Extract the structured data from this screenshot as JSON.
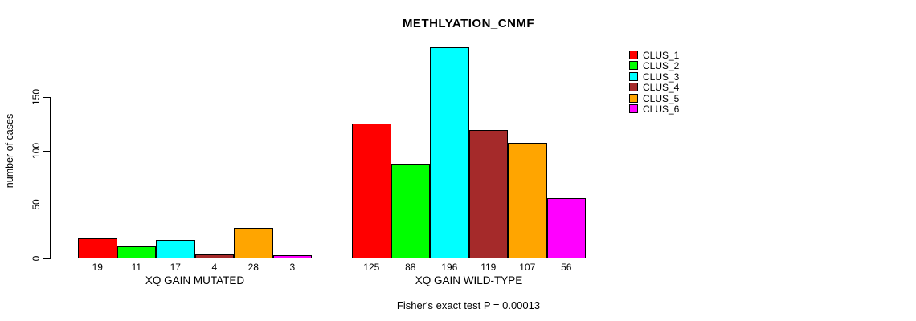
{
  "title": "METHLYATION_CNMF",
  "footer": "Fisher's exact test P = 0.00013",
  "y_axis": {
    "label": "number of cases",
    "ticks": [
      0,
      50,
      100,
      150
    ]
  },
  "legend": {
    "items": [
      {
        "label": "CLUS_1",
        "color": "#FF0000"
      },
      {
        "label": "CLUS_2",
        "color": "#00FF00"
      },
      {
        "label": "CLUS_3",
        "color": "#00FFFF"
      },
      {
        "label": "CLUS_4",
        "color": "#A52A2A"
      },
      {
        "label": "CLUS_5",
        "color": "#FFA500"
      },
      {
        "label": "CLUS_6",
        "color": "#FF00FF"
      }
    ]
  },
  "chart_data": {
    "type": "bar",
    "title": "METHLYATION_CNMF",
    "ylabel": "number of cases",
    "ylim": [
      0,
      196
    ],
    "yticks": [
      0,
      50,
      100,
      150
    ],
    "grid": false,
    "legend_position": "right",
    "series_names": [
      "CLUS_1",
      "CLUS_2",
      "CLUS_3",
      "CLUS_4",
      "CLUS_5",
      "CLUS_6"
    ],
    "colors": [
      "#FF0000",
      "#00FF00",
      "#00FFFF",
      "#A52A2A",
      "#FFA500",
      "#FF00FF"
    ],
    "groups": [
      {
        "label": "XQ GAIN MUTATED",
        "values": [
          19,
          11,
          17,
          4,
          28,
          3
        ]
      },
      {
        "label": "XQ GAIN WILD-TYPE",
        "values": [
          125,
          88,
          196,
          119,
          107,
          56
        ]
      }
    ],
    "annotation": "Fisher's exact test P = 0.00013"
  }
}
